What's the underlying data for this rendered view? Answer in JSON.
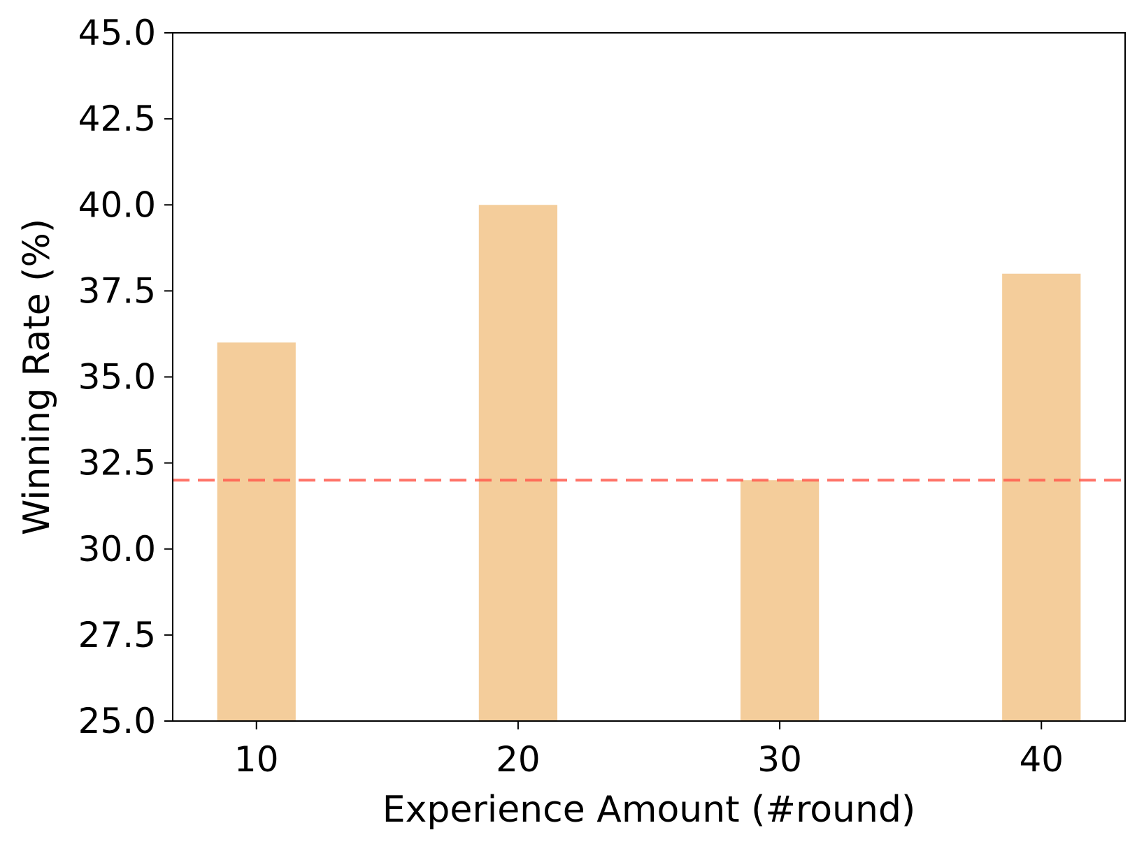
{
  "chart_data": {
    "type": "bar",
    "title": "",
    "xlabel": "Experience Amount (#round)",
    "ylabel": "Winning Rate (%)",
    "categories": [
      "10",
      "20",
      "30",
      "40"
    ],
    "x": [
      10,
      20,
      30,
      40
    ],
    "values": [
      36,
      40,
      32,
      38
    ],
    "ylim": [
      25,
      45
    ],
    "yticks": [
      "25.0",
      "27.5",
      "30.0",
      "32.5",
      "35.0",
      "37.5",
      "40.0",
      "42.5",
      "45.0"
    ],
    "xticks": [
      "10",
      "20",
      "30",
      "40"
    ],
    "reference_line": {
      "y": 32,
      "style": "dashed"
    },
    "grid": false,
    "colors": {
      "bar": "#f4cd9b",
      "reference_line": "#ff5a4d",
      "axis": "#000000"
    }
  }
}
